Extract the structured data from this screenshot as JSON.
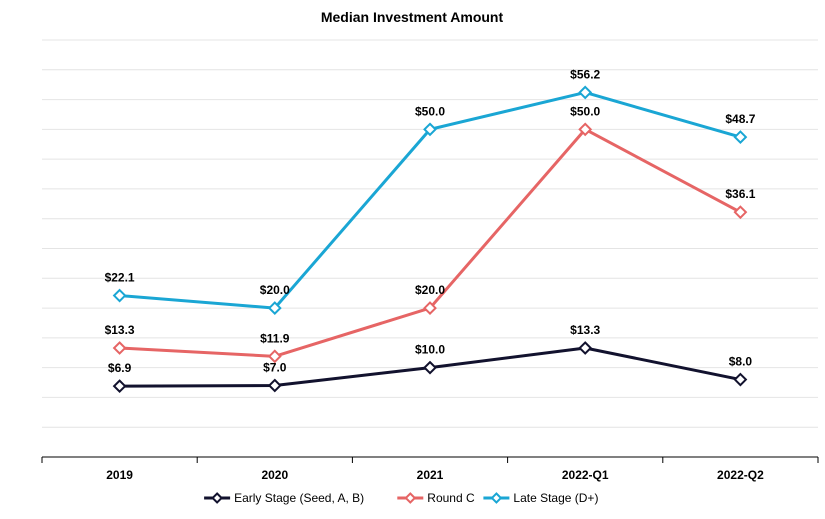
{
  "chart_data": {
    "type": "line",
    "title": "Median Investment Amount",
    "xlabel": "",
    "ylabel": "",
    "categories": [
      "2019",
      "2020",
      "2021",
      "2022-Q1",
      "2022-Q2"
    ],
    "ylim": [
      -5,
      65
    ],
    "grid": true,
    "legend_position": "bottom",
    "series": [
      {
        "name": "Early Stage (Seed, A, B)",
        "values": [
          6.9,
          7.0,
          10.0,
          13.3,
          8.0
        ],
        "labels": [
          "$6.9",
          "$7.0",
          "$10.0",
          "$13.3",
          "$8.0"
        ],
        "color": "#12122e"
      },
      {
        "name": "Round C",
        "values": [
          13.3,
          11.9,
          20.0,
          50.0,
          36.1
        ],
        "labels": [
          "$13.3",
          "$11.9",
          "$20.0",
          "$50.0",
          "$36.1"
        ],
        "color": "#e66565"
      },
      {
        "name": "Late Stage (D+)",
        "values": [
          22.1,
          20.0,
          50.0,
          56.2,
          48.7
        ],
        "labels": [
          "$22.1",
          "$20.0",
          "$50.0",
          "$56.2",
          "$48.7"
        ],
        "color": "#1aa6d4"
      }
    ]
  }
}
